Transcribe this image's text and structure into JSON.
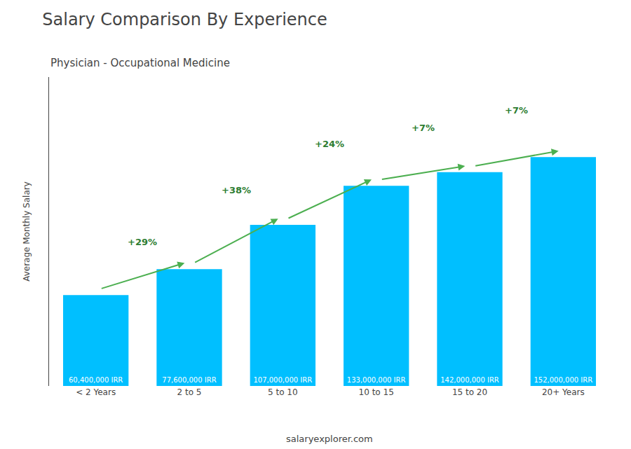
{
  "chart_data": {
    "type": "bar",
    "title": "Salary Comparison By Experience",
    "subtitle": "Physician - Occupational Medicine",
    "categories": [
      "< 2 Years",
      "2 to 5",
      "5 to 10",
      "10 to 15",
      "15 to 20",
      "20+ Years"
    ],
    "values": [
      60400000,
      77600000,
      107000000,
      133000000,
      142000000,
      152000000
    ],
    "value_labels": [
      "60,400,000 IRR",
      "77,600,000 IRR",
      "107,000,000 IRR",
      "133,000,000 IRR",
      "142,000,000 IRR",
      "152,000,000 IRR"
    ],
    "annotations": [
      "+29%",
      "+38%",
      "+24%",
      "+7%",
      "+7%"
    ],
    "ylabel": "Average Monthly Salary",
    "footer": "salaryexplorer.com",
    "color": "#00bfff",
    "ylim": [
      0,
      205200000
    ],
    "grid": false,
    "tick_labels": "x"
  }
}
